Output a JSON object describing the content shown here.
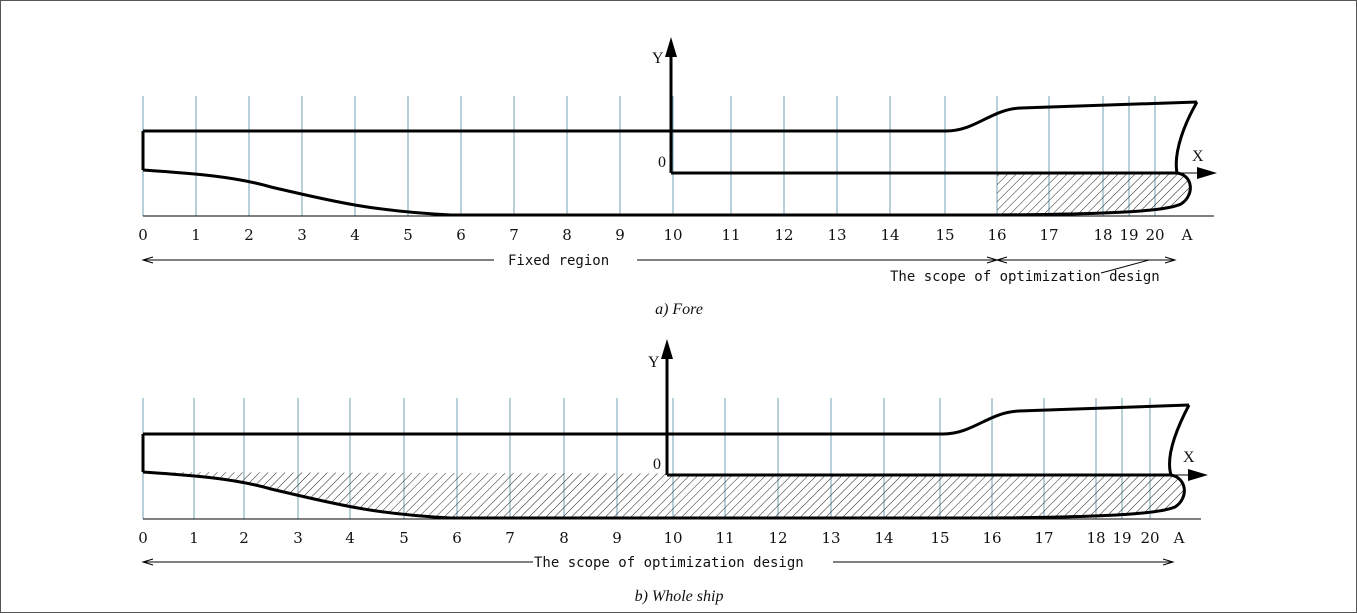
{
  "panels": [
    {
      "id": "fore",
      "caption": "a) Fore",
      "station_labels": [
        "0",
        "1",
        "2",
        "3",
        "4",
        "5",
        "6",
        "7",
        "8",
        "9",
        "10",
        "11",
        "12",
        "13",
        "14",
        "15",
        "16",
        "17",
        "18",
        "19",
        "20",
        "A"
      ],
      "axis_y": "Y",
      "axis_x": "X",
      "origin": "0",
      "region_labels": [
        "Fixed region",
        "The scope of optimization design"
      ]
    },
    {
      "id": "whole",
      "caption": "b) Whole ship",
      "station_labels": [
        "0",
        "1",
        "2",
        "3",
        "4",
        "5",
        "6",
        "7",
        "8",
        "9",
        "10",
        "11",
        "12",
        "13",
        "14",
        "15",
        "16",
        "17",
        "18",
        "19",
        "20",
        "A"
      ],
      "axis_y": "Y",
      "axis_x": "X",
      "origin": "0",
      "region_labels": [
        "The scope of optimization design"
      ]
    }
  ]
}
